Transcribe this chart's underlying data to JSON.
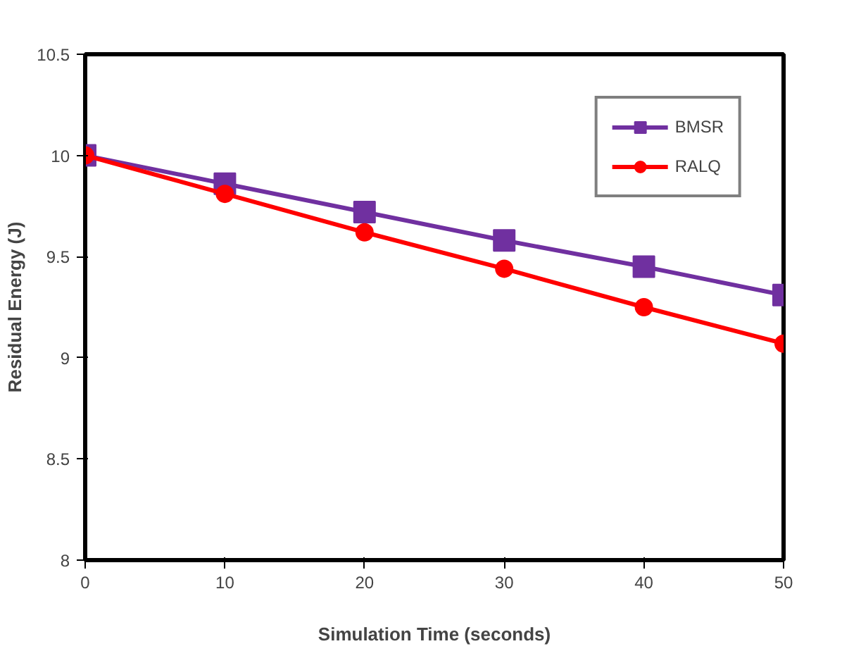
{
  "chart_data": {
    "type": "line",
    "xlabel": "Simulation Time (seconds)",
    "ylabel": "Residual Energy (J)",
    "x": [
      0,
      10,
      20,
      30,
      40,
      50
    ],
    "series": [
      {
        "name": "BMSR",
        "color": "#7030a0",
        "marker": "square",
        "values": [
          10,
          9.86,
          9.72,
          9.58,
          9.45,
          9.31
        ]
      },
      {
        "name": "RALQ",
        "color": "#ff0000",
        "marker": "circle",
        "values": [
          10,
          9.81,
          9.62,
          9.44,
          9.25,
          9.07
        ]
      }
    ],
    "xlim": [
      0,
      50
    ],
    "ylim": [
      8,
      10.5
    ],
    "xticks": [
      0,
      10,
      20,
      30,
      40,
      50
    ],
    "yticks": [
      8,
      {
        "value": 8.5,
        "label": "8.5"
      },
      9,
      {
        "value": 9.5,
        "label": "9.5"
      },
      10,
      {
        "value": 10.5,
        "label": "10.5"
      }
    ],
    "grid": false,
    "legend": "top right",
    "line_style": "solid"
  }
}
